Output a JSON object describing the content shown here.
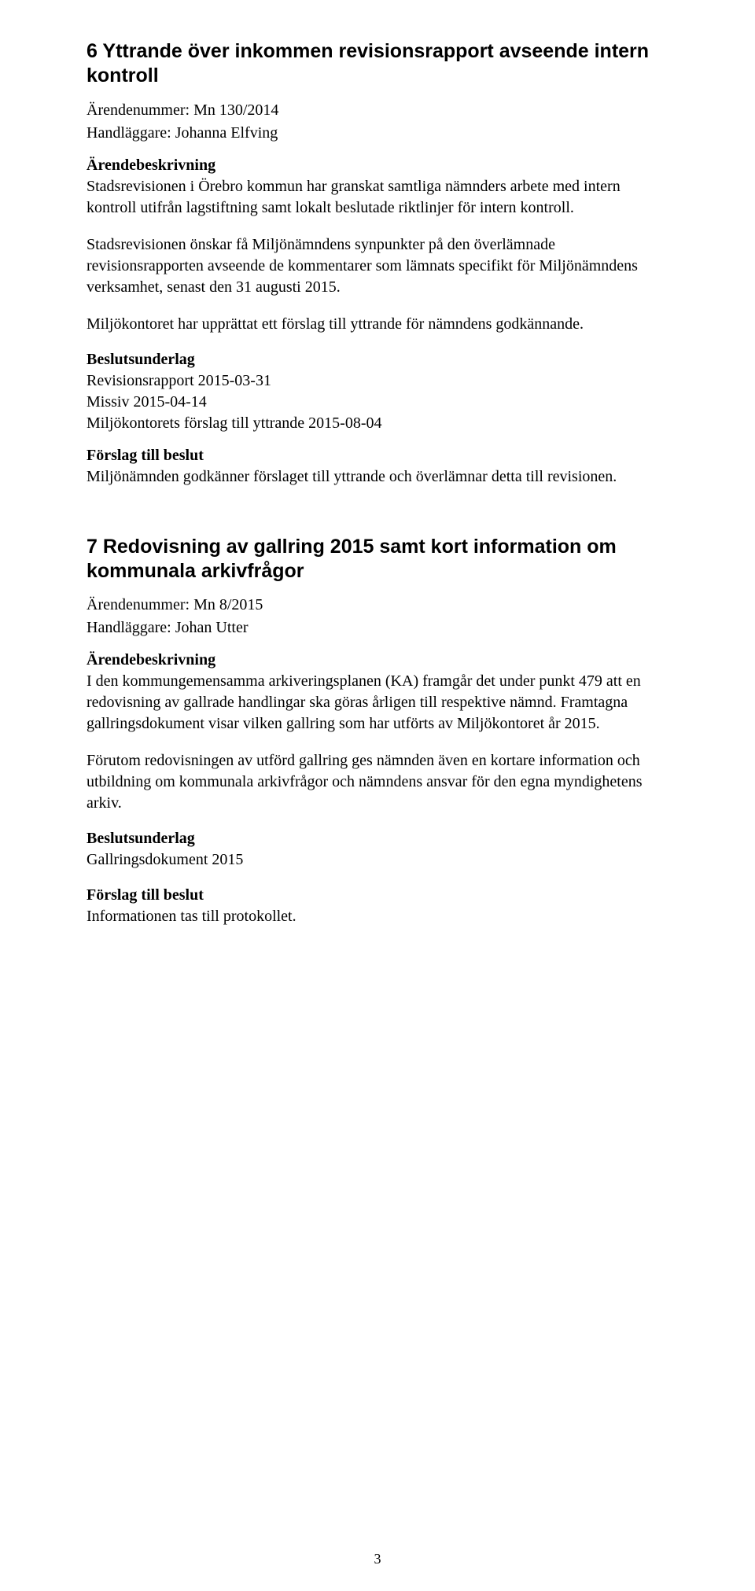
{
  "section6": {
    "title": "6 Yttrande över inkommen revisionsrapport avseende intern kontroll",
    "arendenummer": "Ärendenummer: Mn 130/2014",
    "handlaggare": "Handläggare: Johanna Elfving",
    "besk_head": "Ärendebeskrivning",
    "besk_p1": "Stadsrevisionen i Örebro kommun har granskat samtliga nämnders arbete med intern kontroll utifrån lagstiftning samt lokalt beslutade riktlinjer för intern kontroll.",
    "besk_p2": "Stadsrevisionen önskar få Miljönämndens synpunkter på den överlämnade revisionsrapporten avseende de kommentarer som lämnats specifikt för Miljönämndens verksamhet, senast den 31 augusti 2015.",
    "besk_p3": "Miljökontoret har upprättat ett förslag till yttrande för nämndens godkännande.",
    "underlag_head": "Beslutsunderlag",
    "underlag_l1": "Revisionsrapport 2015-03-31",
    "underlag_l2": "Missiv 2015-04-14",
    "underlag_l3": "Miljökontorets förslag till yttrande 2015-08-04",
    "forslag_head": "Förslag till beslut",
    "forslag_p": "Miljönämnden godkänner förslaget till yttrande och överlämnar detta till revisionen."
  },
  "section7": {
    "title": "7 Redovisning av gallring 2015 samt kort information om kommunala arkivfrågor",
    "arendenummer": "Ärendenummer: Mn 8/2015",
    "handlaggare": "Handläggare: Johan Utter",
    "besk_head": "Ärendebeskrivning",
    "besk_p1": "I den kommungemensamma arkiveringsplanen (KA) framgår det under punkt 479 att en redovisning av gallrade handlingar ska göras årligen till respektive nämnd. Framtagna gallringsdokument visar vilken gallring som har utförts av Miljökontoret år 2015.",
    "besk_p2": "Förutom redovisningen av utförd gallring ges nämnden även en kortare information och utbildning om kommunala arkivfrågor och nämndens ansvar för den egna myndighetens arkiv.",
    "underlag_head": "Beslutsunderlag",
    "underlag_l1": "Gallringsdokument 2015",
    "forslag_head": "Förslag till beslut",
    "forslag_p": "Informationen tas till protokollet."
  },
  "page_number": "3"
}
